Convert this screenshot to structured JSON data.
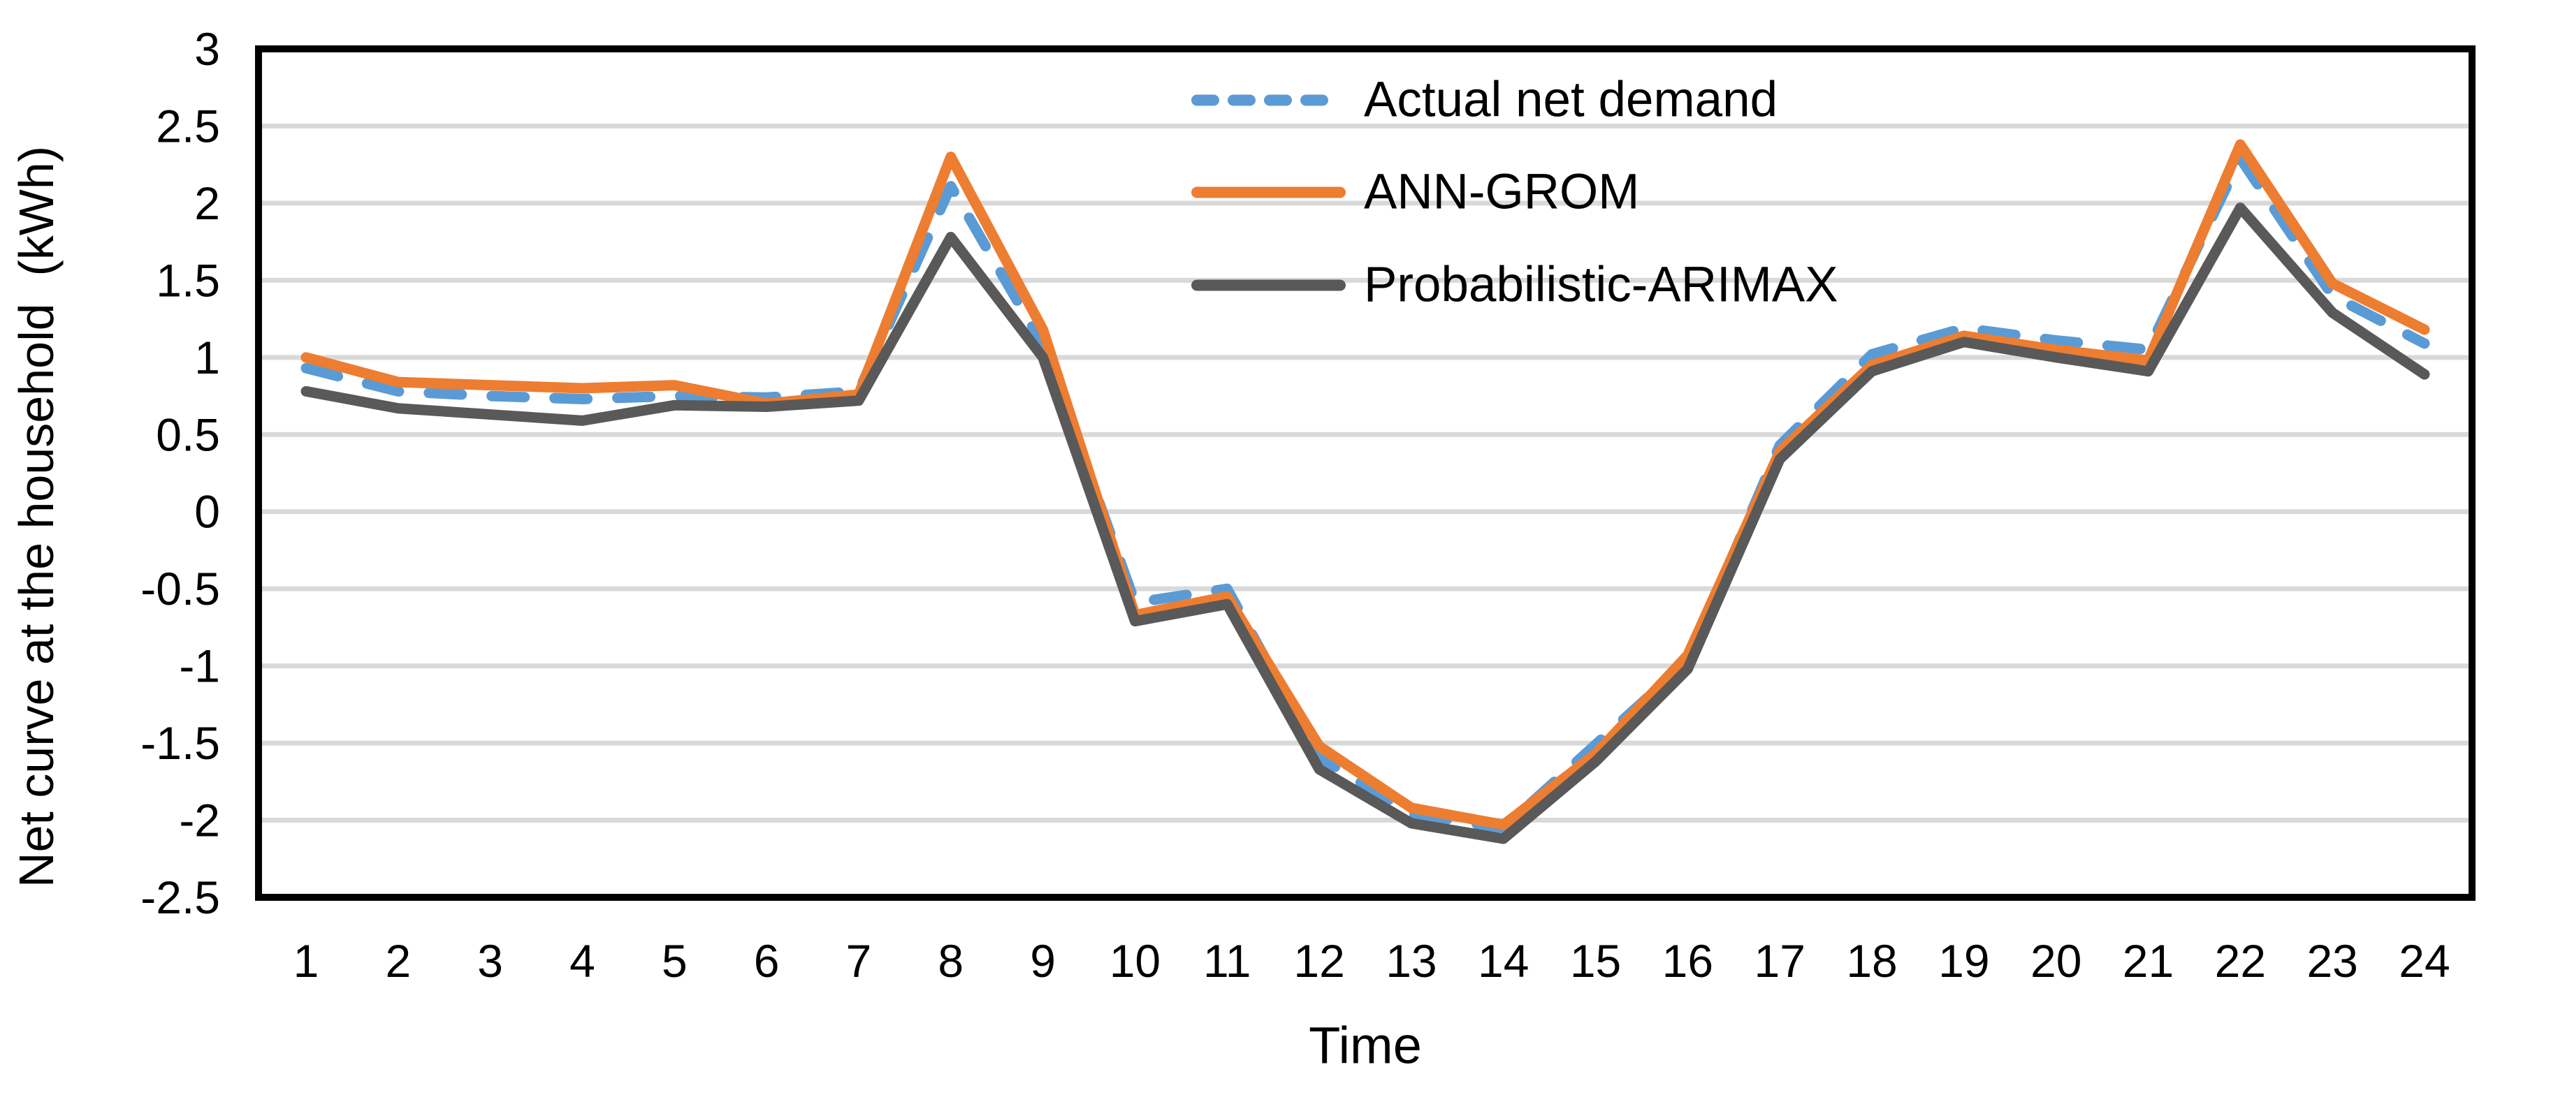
{
  "chart_data": {
    "type": "line",
    "title": "",
    "xlabel": "Time",
    "ylabel": "Net curve at the household  (kWh)",
    "ylim": [
      -2.5,
      3
    ],
    "ytick_step": 0.5,
    "grid": "horizontal",
    "gridline_color": "#D9D9D9",
    "axis_border_color": "#000000",
    "legend_position": "top-center-inside",
    "categories": [
      1,
      2,
      3,
      4,
      5,
      6,
      7,
      8,
      9,
      10,
      11,
      12,
      13,
      14,
      15,
      16,
      17,
      18,
      19,
      20,
      21,
      22,
      23,
      24
    ],
    "y_tick_labels": [
      "3",
      "2.5",
      "2",
      "1.5",
      "1",
      "0.5",
      "0",
      "-0.5",
      "-1",
      "-1.5",
      "-2",
      "-2.5"
    ],
    "series": [
      {
        "name": "Actual net demand",
        "color": "#5B9BD5",
        "style": "dashed",
        "values": [
          0.93,
          0.78,
          0.75,
          0.73,
          0.75,
          0.74,
          0.78,
          2.11,
          1.08,
          -0.59,
          -0.5,
          -1.59,
          -1.96,
          -2.05,
          -1.51,
          -0.97,
          0.43,
          1.02,
          1.19,
          1.11,
          1.05,
          2.29,
          1.4,
          1.09
        ]
      },
      {
        "name": "ANN-GROM",
        "color": "#ED7D31",
        "style": "solid",
        "values": [
          1.0,
          0.84,
          0.82,
          0.8,
          0.82,
          0.7,
          0.76,
          2.3,
          1.18,
          -0.67,
          -0.55,
          -1.52,
          -1.92,
          -2.03,
          -1.57,
          -0.93,
          0.39,
          0.95,
          1.14,
          1.05,
          0.98,
          2.38,
          1.48,
          1.18
        ]
      },
      {
        "name": "Probabilistic-ARIMAX",
        "color": "#595959",
        "style": "solid",
        "values": [
          0.78,
          0.67,
          0.63,
          0.59,
          0.69,
          0.68,
          0.72,
          1.78,
          1.0,
          -0.71,
          -0.6,
          -1.67,
          -2.02,
          -2.12,
          -1.62,
          -1.02,
          0.34,
          0.91,
          1.1,
          1.0,
          0.91,
          1.97,
          1.29,
          0.89
        ]
      }
    ]
  }
}
